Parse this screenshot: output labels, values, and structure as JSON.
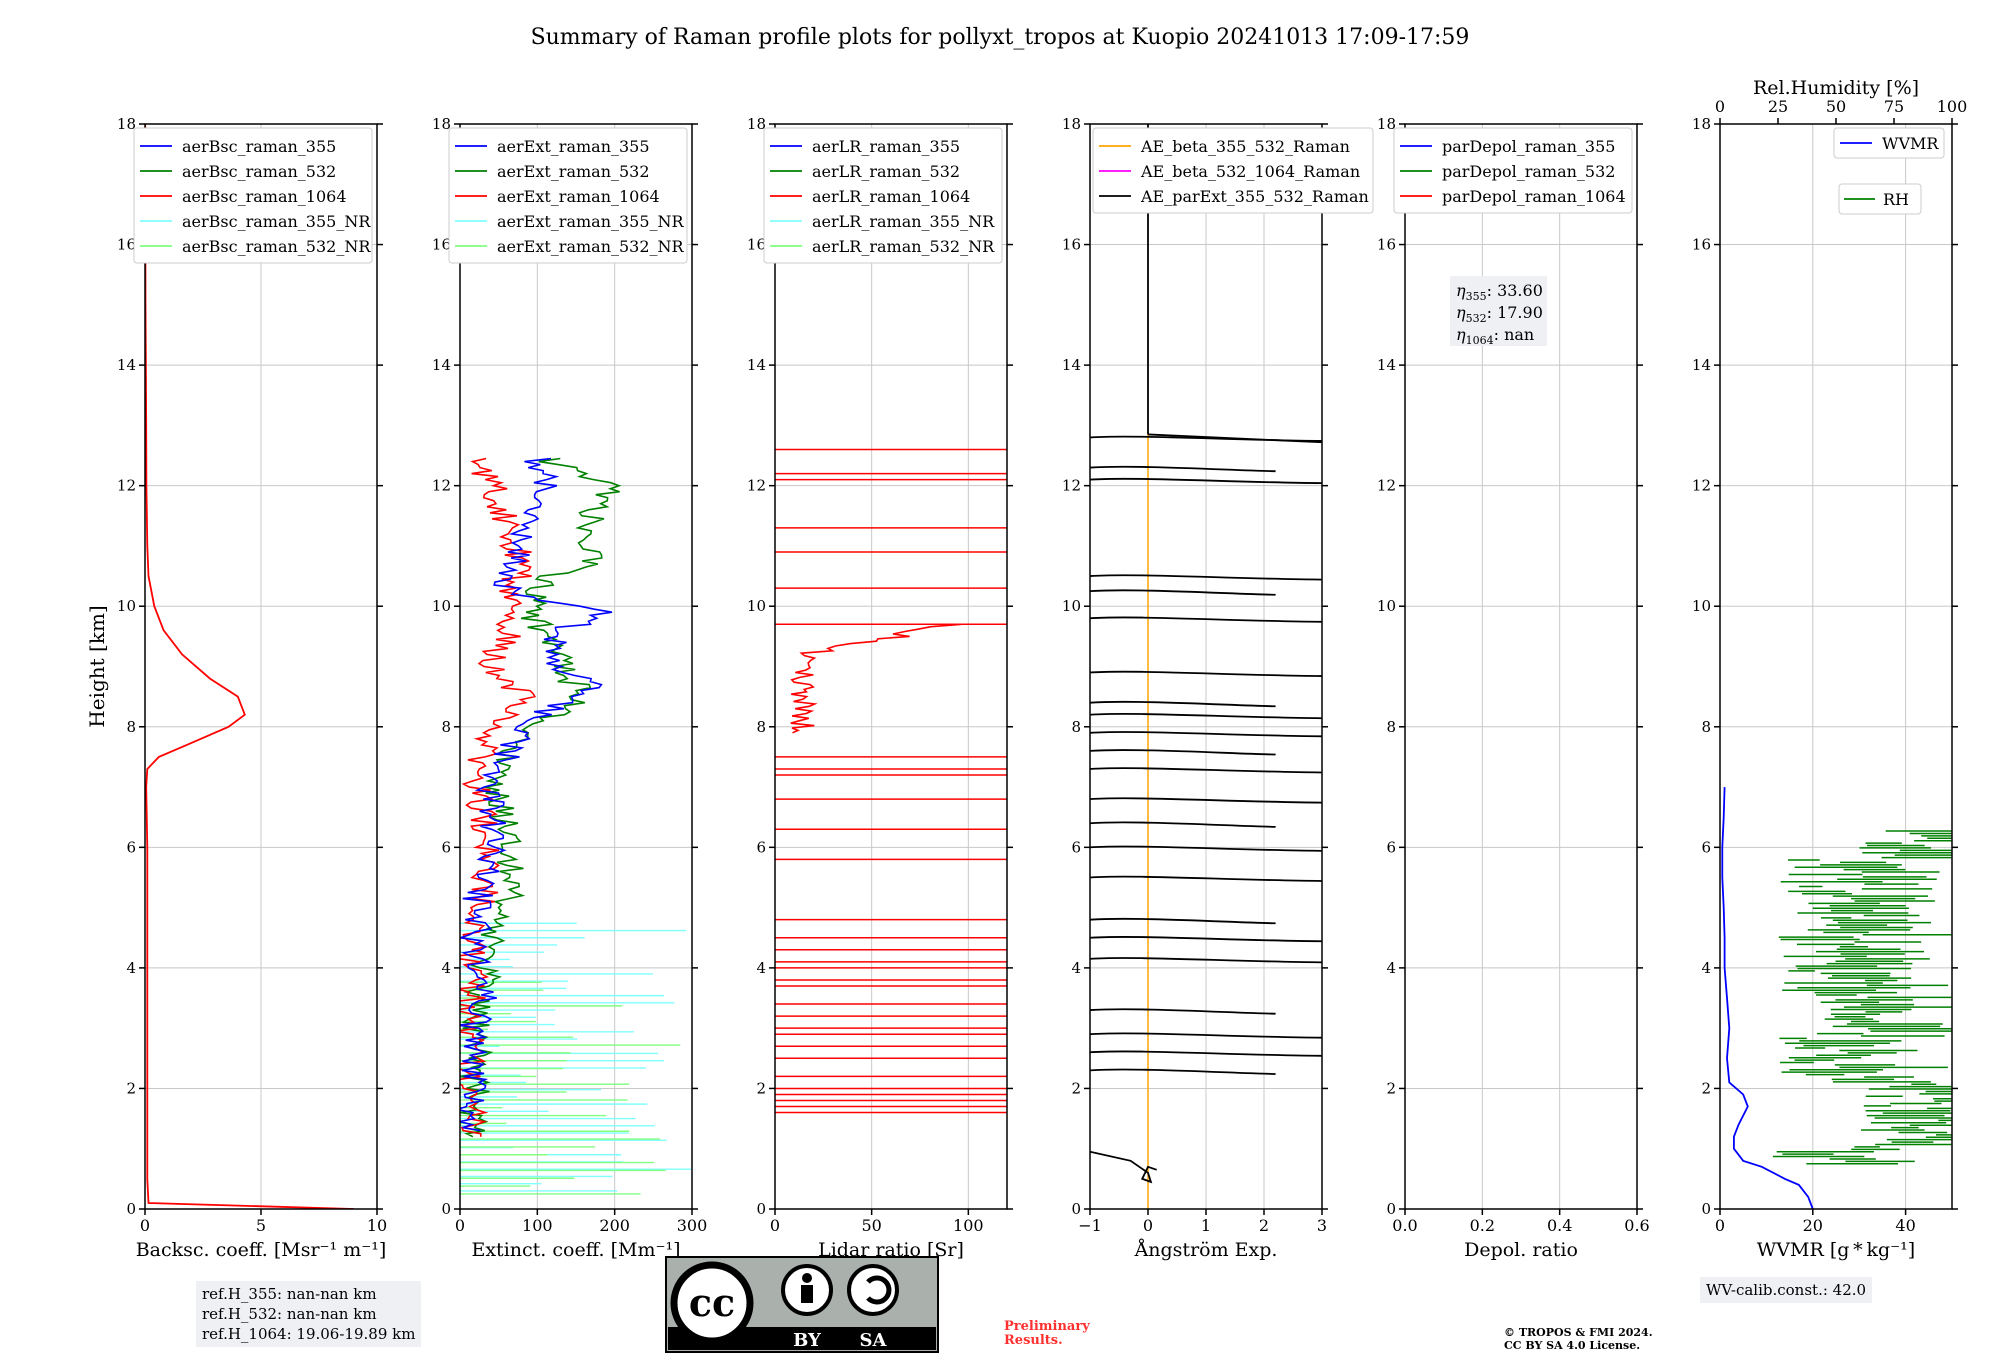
{
  "title": "Summary of Raman profile plots for pollyxt_tropos at Kuopio 20241013 17:09-17:59",
  "colors": {
    "355": "#0000ff",
    "532": "#008000",
    "1064": "#ff0000",
    "355_NR": "#80ffff",
    "532_NR": "#80ff80",
    "ae_355_532": "#ffa500",
    "ae_532_1064": "#ff00ff",
    "ae_parext": "#000000",
    "wvmr": "#0000ff",
    "rh": "#008000"
  },
  "y_axis": {
    "label": "Height [km]",
    "range": [
      0,
      18
    ],
    "ticks": [
      "0",
      "2",
      "4",
      "6",
      "8",
      "10",
      "12",
      "14",
      "16",
      "18"
    ]
  },
  "chart_data": [
    {
      "type": "line",
      "xlabel": "Backsc. coeff. [Msr⁻¹ m⁻¹]",
      "xlim": [
        0,
        10
      ],
      "xticks": [
        0,
        5,
        10
      ],
      "xtick_labels": [
        "0",
        "5",
        "10"
      ],
      "legend": [
        "aerBsc_raman_355",
        "aerBsc_raman_532",
        "aerBsc_raman_1064",
        "aerBsc_raman_355_NR",
        "aerBsc_raman_532_NR"
      ],
      "legend_placement": "top-right",
      "series": [
        {
          "name": "aerBsc_raman_1064",
          "style": "smooth",
          "points": [
            [
              9,
              0
            ],
            [
              0.15,
              0.1
            ],
            [
              0.1,
              0.5
            ],
            [
              0.1,
              2
            ],
            [
              0.1,
              4
            ],
            [
              0.1,
              6
            ],
            [
              0.05,
              7
            ],
            [
              0.1,
              7.3
            ],
            [
              0.6,
              7.5
            ],
            [
              1.8,
              7.7
            ],
            [
              3.6,
              8.0
            ],
            [
              4.3,
              8.2
            ],
            [
              4.0,
              8.5
            ],
            [
              2.8,
              8.8
            ],
            [
              1.6,
              9.2
            ],
            [
              0.8,
              9.6
            ],
            [
              0.4,
              10
            ],
            [
              0.15,
              10.5
            ],
            [
              0.1,
              11
            ],
            [
              0.06,
              12
            ],
            [
              0.05,
              13
            ],
            [
              0.02,
              15
            ],
            [
              0.01,
              18
            ]
          ]
        }
      ]
    },
    {
      "type": "line",
      "xlabel": "Extinct. coeff. [Mm⁻¹]",
      "xlim": [
        0,
        300
      ],
      "xticks": [
        0,
        100,
        200,
        300
      ],
      "xtick_labels": [
        "0",
        "100",
        "200",
        "300"
      ],
      "legend": [
        "aerExt_raman_355",
        "aerExt_raman_532",
        "aerExt_raman_1064",
        "aerExt_raman_355_NR",
        "aerExt_raman_532_NR"
      ],
      "legend_placement": "top-right",
      "series": [
        {
          "name": "aerExt_raman_355_NR",
          "style": "hbars",
          "range": [
            0.3,
            4.8,
            0.12
          ],
          "val_range": [
            20,
            300
          ]
        },
        {
          "name": "aerExt_raman_532_NR",
          "style": "hbars",
          "range": [
            0.25,
            3.8,
            0.13
          ],
          "val_range": [
            30,
            300
          ]
        },
        {
          "name": "aerExt_raman_532",
          "style": "noisy",
          "range": [
            1.2,
            12.5,
            0.05
          ],
          "centers": [
            [
              1.2,
              20
            ],
            [
              3,
              20
            ],
            [
              4.5,
              40
            ],
            [
              5,
              60
            ],
            [
              6,
              70
            ],
            [
              7,
              40
            ],
            [
              8,
              90
            ],
            [
              8.5,
              160
            ],
            [
              9,
              130
            ],
            [
              9.5,
              110
            ],
            [
              10,
              90
            ],
            [
              10.5,
              110
            ],
            [
              10.7,
              170
            ],
            [
              11.5,
              170
            ],
            [
              12,
              200
            ],
            [
              12.5,
              100
            ]
          ]
        },
        {
          "name": "aerExt_raman_1064",
          "style": "noisy",
          "range": [
            1.2,
            12.5,
            0.05
          ],
          "centers": [
            [
              1.2,
              15
            ],
            [
              3,
              10
            ],
            [
              4.5,
              20
            ],
            [
              5,
              30
            ],
            [
              6,
              40
            ],
            [
              7,
              20
            ],
            [
              8,
              40
            ],
            [
              8.5,
              80
            ],
            [
              9,
              40
            ],
            [
              9.5,
              60
            ],
            [
              10,
              60
            ],
            [
              10.7,
              80
            ],
            [
              11.5,
              60
            ],
            [
              12,
              40
            ],
            [
              12.5,
              20
            ]
          ]
        },
        {
          "name": "aerExt_raman_355",
          "style": "noisy",
          "range": [
            1.3,
            12.5,
            0.05
          ],
          "centers": [
            [
              1.3,
              10
            ],
            [
              2,
              20
            ],
            [
              3,
              15
            ],
            [
              3.6,
              35
            ],
            [
              4,
              20
            ],
            [
              5,
              20
            ],
            [
              6,
              40
            ],
            [
              7,
              40
            ],
            [
              8,
              80
            ],
            [
              8.8,
              180
            ],
            [
              9,
              120
            ],
            [
              9.5,
              120
            ],
            [
              9.9,
              180
            ],
            [
              10.2,
              60
            ],
            [
              11,
              80
            ],
            [
              12,
              110
            ],
            [
              12.5,
              100
            ]
          ]
        }
      ]
    },
    {
      "type": "line",
      "xlabel": "Lidar ratio [Sr]",
      "xlim": [
        0,
        120
      ],
      "xticks": [
        0,
        50,
        100
      ],
      "xtick_labels": [
        "0",
        "50",
        "100"
      ],
      "legend": [
        "aerLR_raman_355",
        "aerLR_raman_532",
        "aerLR_raman_1064",
        "aerLR_raman_355_NR",
        "aerLR_raman_532_NR"
      ],
      "legend_placement": "top-right",
      "series": [
        {
          "name": "aerLR_raman_1064",
          "style": "lr"
        }
      ]
    },
    {
      "type": "line",
      "xlabel": "Ångström Exp.",
      "xlim": [
        -1,
        3
      ],
      "xticks": [
        -1,
        0,
        1,
        2,
        3
      ],
      "xtick_labels": [
        "−1",
        "0",
        "1",
        "2",
        "3"
      ],
      "legend": [
        "AE_beta_355_532_Raman",
        "AE_beta_532_1064_Raman",
        "AE_parExt_355_532_Raman"
      ],
      "legend_placement": "top-left",
      "series": [
        {
          "name": "AE_beta_355_532_Raman",
          "style": "vline",
          "x": 0,
          "yrange": [
            0,
            12.9
          ]
        },
        {
          "name": "AE_parExt_355_532_Raman",
          "style": "ae",
          "points": [
            [
              -1,
              0.95
            ],
            [
              -0.3,
              0.8
            ],
            [
              0,
              0.6
            ],
            [
              0.05,
              0.45
            ],
            [
              -0.1,
              0.5
            ],
            [
              0,
              0.7
            ],
            [
              0.15,
              0.65
            ]
          ]
        }
      ]
    },
    {
      "type": "line",
      "xlabel": "Depol. ratio",
      "xlim": [
        0,
        0.6
      ],
      "xticks": [
        0,
        0.2,
        0.4,
        0.6
      ],
      "xtick_labels": [
        "0.0",
        "0.2",
        "0.4",
        "0.6"
      ],
      "legend": [
        "parDepol_raman_355",
        "parDepol_raman_532",
        "parDepol_raman_1064"
      ],
      "legend_placement": "top-right",
      "eta": {
        "355": "33.60",
        "532": "17.90",
        "1064": "nan"
      },
      "series": []
    },
    {
      "type": "line",
      "xlabel": "WVMR [g * kg⁻¹]",
      "xlim": [
        0,
        50
      ],
      "xticks": [
        0,
        20,
        40
      ],
      "xtick_labels": [
        "0",
        "20",
        "40"
      ],
      "top_xlabel": "Rel.Humidity [%]",
      "top_xlim": [
        0,
        100
      ],
      "top_xticks": [
        0,
        25,
        50,
        75,
        100
      ],
      "top_xtick_labels": [
        "0",
        "25",
        "50",
        "75",
        "100"
      ],
      "legend": [
        "WVMR",
        "RH"
      ],
      "legend_placement": "top-right",
      "series": [
        {
          "name": "WVMR",
          "style": "smooth",
          "points": [
            [
              20,
              0
            ],
            [
              19,
              0.2
            ],
            [
              17,
              0.4
            ],
            [
              14,
              0.5
            ],
            [
              9,
              0.7
            ],
            [
              5,
              0.8
            ],
            [
              3,
              1.0
            ],
            [
              3,
              1.2
            ],
            [
              4,
              1.4
            ],
            [
              6,
              1.7
            ],
            [
              5,
              1.9
            ],
            [
              2,
              2.1
            ],
            [
              1.5,
              2.5
            ],
            [
              2,
              3
            ],
            [
              1.5,
              3.5
            ],
            [
              1,
              4
            ],
            [
              1,
              4.5
            ],
            [
              0.8,
              5
            ],
            [
              0.5,
              5.5
            ],
            [
              0.5,
              6
            ],
            [
              0.8,
              6.5
            ],
            [
              1,
              7
            ]
          ]
        },
        {
          "name": "RH",
          "style": "noisy_rh",
          "range": [
            0.75,
            6.3,
            0.04
          ]
        }
      ]
    }
  ],
  "notes": {
    "ref_h_355": "ref.H_355: nan-nan km",
    "ref_h_532": "ref.H_532: nan-nan km",
    "ref_h_1064": "ref.H_1064: 19.06-19.89 km",
    "wv_calib": "WV-calib.const.: 42.0",
    "preliminary_1": "Preliminary",
    "preliminary_2": "Results.",
    "copyright_1": "© TROPOS & FMI 2024.",
    "copyright_2": "CC BY SA 4.0 License.",
    "cc_badge_by": "BY",
    "cc_badge_sa": "SA"
  }
}
